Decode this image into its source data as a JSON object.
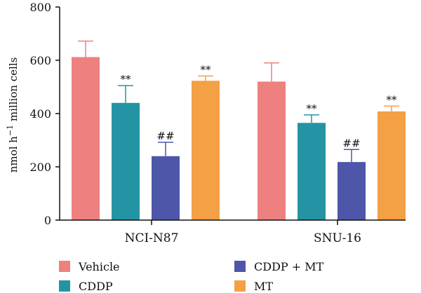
{
  "chart_data": {
    "type": "bar",
    "categories": [
      "NCI-N87",
      "SNU-16"
    ],
    "series": [
      {
        "name": "Vehicle",
        "color": "#EE8080",
        "values": [
          612,
          520
        ],
        "errors": [
          60,
          70
        ],
        "sig": [
          "",
          ""
        ]
      },
      {
        "name": "CDDP",
        "color": "#2494A4",
        "values": [
          440,
          365
        ],
        "errors": [
          65,
          30
        ],
        "sig": [
          "**",
          "**"
        ]
      },
      {
        "name": "CDDP + MT",
        "color": "#4D56A8",
        "values": [
          240,
          218
        ],
        "errors": [
          52,
          47
        ],
        "sig": [
          "##",
          "##"
        ]
      },
      {
        "name": "MT",
        "color": "#F4A044",
        "values": [
          523,
          408
        ],
        "errors": [
          18,
          20
        ],
        "sig": [
          "**",
          "**"
        ]
      }
    ],
    "ylabel": "nmol h−1 million cells",
    "ylim": [
      0,
      800
    ],
    "yticks": [
      0,
      200,
      400,
      600,
      800
    ],
    "grid": false,
    "legend": "bottom"
  }
}
